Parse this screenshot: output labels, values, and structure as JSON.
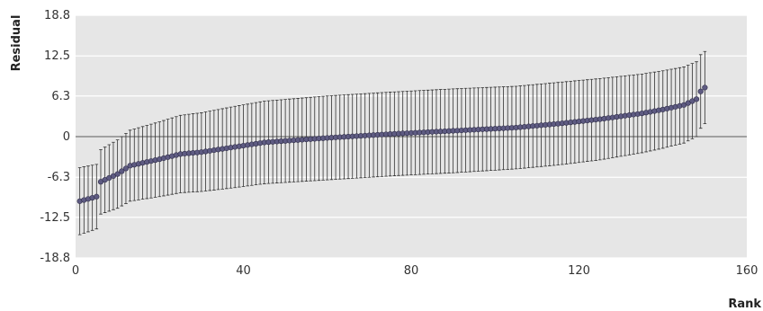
{
  "chart_data": {
    "type": "scatter",
    "xlabel": "Rank",
    "ylabel": "Residual",
    "xlim": [
      0,
      160
    ],
    "ylim": [
      -18.8,
      18.8
    ],
    "xticks": [
      0,
      40,
      80,
      120,
      160
    ],
    "yticks": [
      -18.8,
      -12.5,
      -6.3,
      0,
      6.3,
      12.5,
      18.8
    ],
    "grid": true,
    "zero_line": true,
    "colors": {
      "plot_background": "#e6e6e6",
      "point": "#5e5b82",
      "error_bar": "#333333"
    },
    "anchors": [
      [
        1,
        -10.0,
        5.2
      ],
      [
        5,
        -9.3,
        5.0
      ],
      [
        6,
        -7.0,
        5.0
      ],
      [
        10,
        -5.8,
        5.3
      ],
      [
        13,
        -4.5,
        5.5
      ],
      [
        20,
        -3.5,
        5.8
      ],
      [
        25,
        -2.7,
        6.0
      ],
      [
        30,
        -2.4,
        6.1
      ],
      [
        38,
        -1.6,
        6.3
      ],
      [
        45,
        -0.9,
        6.4
      ],
      [
        60,
        -0.2,
        6.5
      ],
      [
        75,
        0.4,
        6.5
      ],
      [
        90,
        0.9,
        6.5
      ],
      [
        105,
        1.4,
        6.4
      ],
      [
        115,
        2.0,
        6.4
      ],
      [
        125,
        2.7,
        6.3
      ],
      [
        135,
        3.6,
        6.1
      ],
      [
        140,
        4.2,
        6.0
      ],
      [
        145,
        4.9,
        5.9
      ],
      [
        148,
        5.8,
        5.8
      ],
      [
        149,
        7.0,
        5.7
      ],
      [
        150,
        7.6,
        5.6
      ]
    ],
    "n_points": 150
  }
}
